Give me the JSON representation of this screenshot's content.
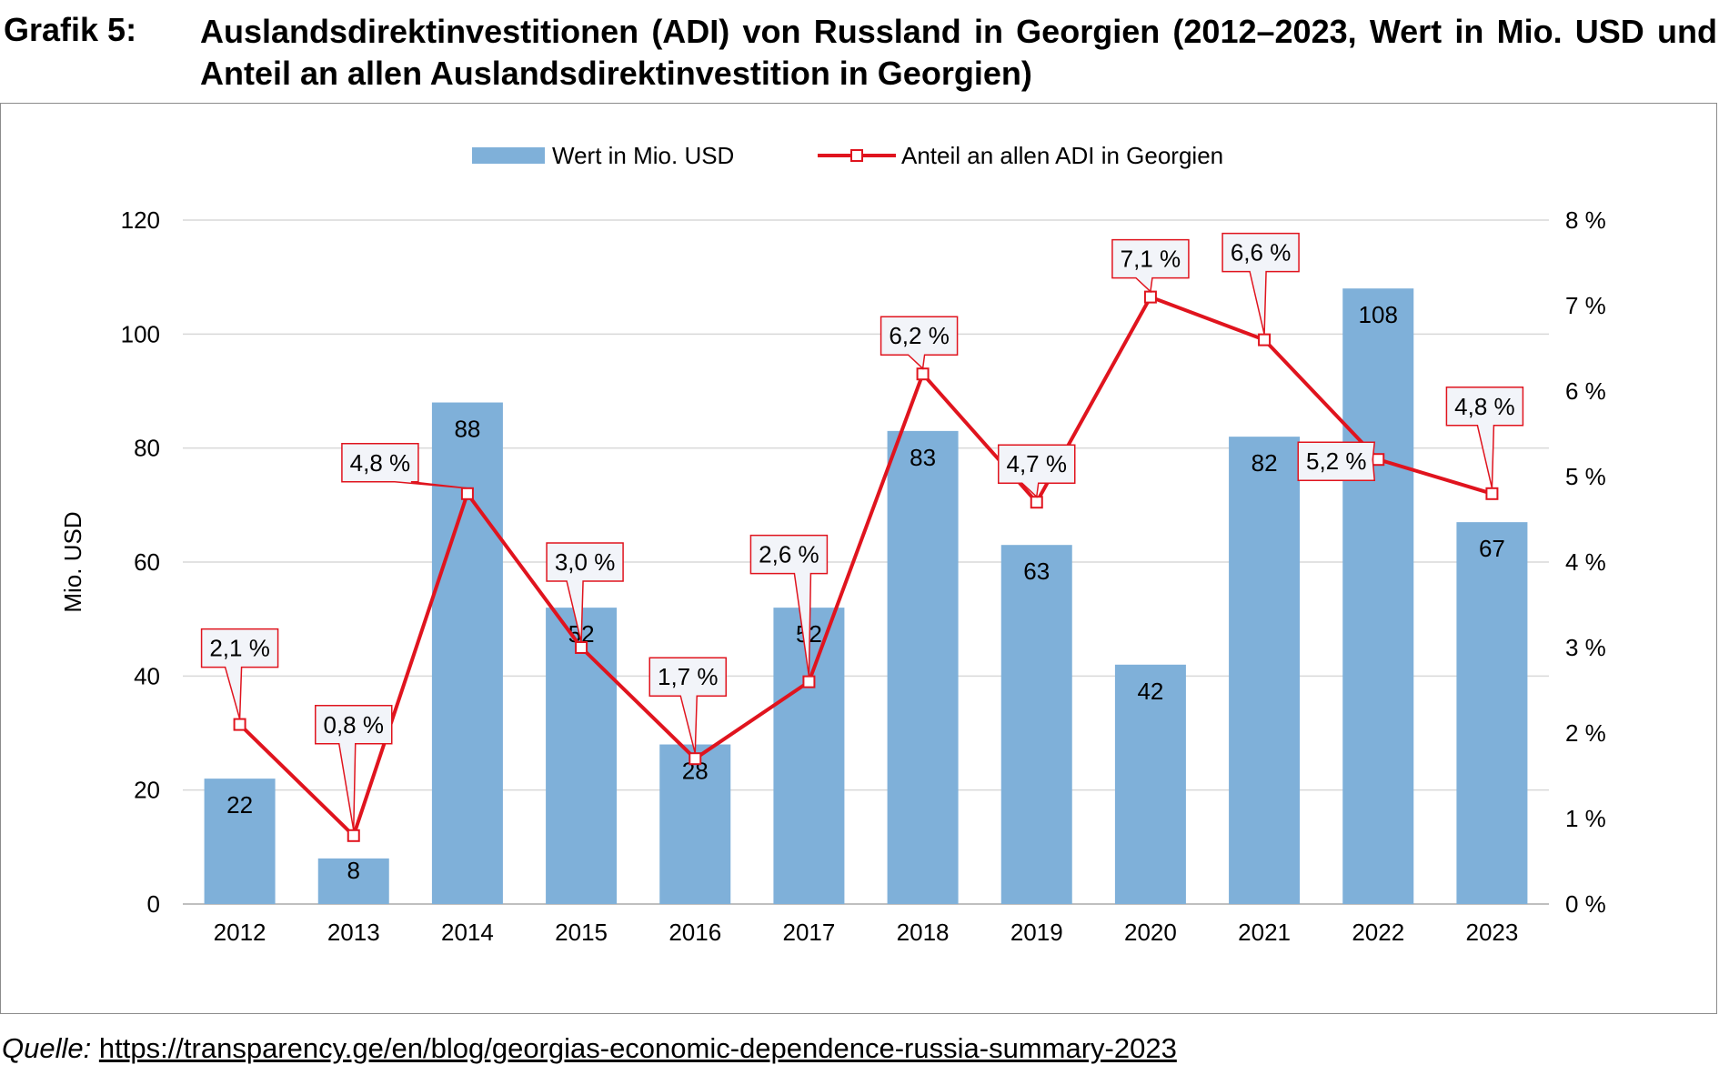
{
  "figure": {
    "label": "Grafik 5:",
    "title": "Auslandsdirektinvestitionen (ADI) von Russland in Georgien (2012–2023, Wert in Mio. USD und Anteil an allen Auslandsdirektinvestition in Georgien)"
  },
  "source": {
    "prefix": "Quelle:",
    "url": "https://transparency.ge/en/blog/georgias-economic-dependence-russia-summary-2023"
  },
  "colors": {
    "bar": "#7fb0d9",
    "line": "#e0141e",
    "grid": "#d9d9d9",
    "callout_bg": "#f2f4f9"
  },
  "chart_data": {
    "type": "bar",
    "categories": [
      "2012",
      "2013",
      "2014",
      "2015",
      "2016",
      "2017",
      "2018",
      "2019",
      "2020",
      "2021",
      "2022",
      "2023"
    ],
    "series": [
      {
        "name": "Wert in Mio. USD",
        "type": "bar",
        "axis": "left",
        "values": [
          22,
          8,
          88,
          52,
          28,
          52,
          83,
          63,
          42,
          82,
          108,
          67
        ],
        "labels": [
          "22",
          "8",
          "88",
          "52",
          "28",
          "52",
          "83",
          "63",
          "42",
          "82",
          "108",
          "67"
        ]
      },
      {
        "name": "Anteil an allen ADI in Georgien",
        "type": "line",
        "axis": "right",
        "values": [
          2.1,
          0.8,
          4.8,
          3.0,
          1.7,
          2.6,
          6.2,
          4.7,
          7.1,
          6.6,
          5.2,
          4.8
        ],
        "labels": [
          "2,1 %",
          "0,8 %",
          "4,8 %",
          "3,0 %",
          "1,7 %",
          "2,6 %",
          "6,2 %",
          "4,7 %",
          "7,1 %",
          "6,6 %",
          "5,2 %",
          "4,8 %"
        ]
      }
    ],
    "ylabel": "Mio. USD",
    "ylim": [
      0,
      120
    ],
    "yticks": [
      "0",
      "20",
      "40",
      "60",
      "80",
      "100",
      "120"
    ],
    "y2lim": [
      0,
      8
    ],
    "y2ticks": [
      "0 %",
      "1 %",
      "2 %",
      "3 %",
      "4 %",
      "5 %",
      "6 %",
      "7 %",
      "8 %"
    ],
    "grid": true,
    "legend_position": "top"
  }
}
